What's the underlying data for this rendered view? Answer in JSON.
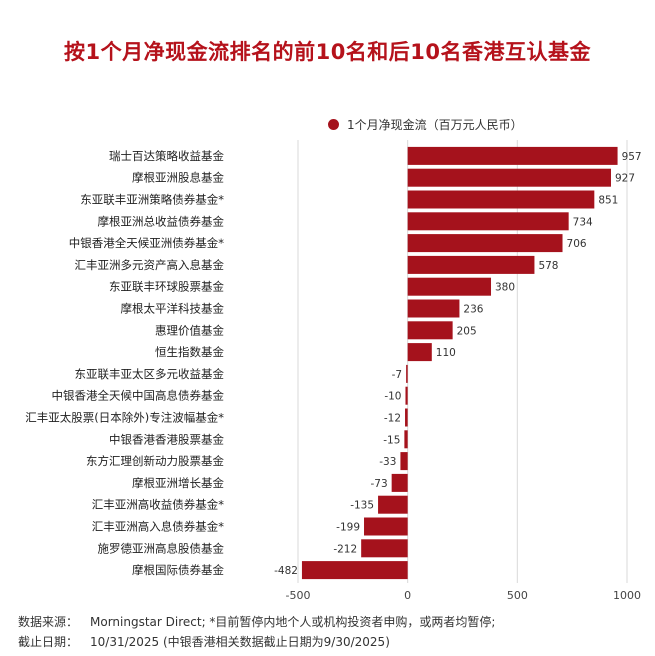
{
  "title": "按1个月净现金流排名的前10名和后10名香港互认基金",
  "legend_label": "1个月净现金流（百万元人民币）",
  "colors": {
    "bar": "#a5121c",
    "title": "#b5121b",
    "grid": "#d9d9d9"
  },
  "footer": {
    "source_label": "数据来源：",
    "source_text": "Morningstar Direct; *目前暂停内地个人或机构投资者申购，或两者均暂停;",
    "date_label": "截止日期：",
    "date_text": "10/31/2025 (中银香港相关数据截止日期为9/30/2025)"
  },
  "chart_data": {
    "type": "bar",
    "orientation": "horizontal",
    "title": "按1个月净现金流排名的前10名和后10名香港互认基金",
    "series": [
      {
        "name": "1个月净现金流（百万元人民币）",
        "values": [
          957,
          927,
          851,
          734,
          706,
          578,
          380,
          236,
          205,
          110,
          -7,
          -10,
          -12,
          -15,
          -33,
          -73,
          -135,
          -199,
          -212,
          -482
        ]
      }
    ],
    "categories": [
      "瑞士百达策略收益基金",
      "摩根亚洲股息基金",
      "东亚联丰亚洲策略债券基金*",
      "摩根亚洲总收益债券基金",
      "中银香港全天候亚洲债券基金*",
      "汇丰亚洲多元资产高入息基金",
      "东亚联丰环球股票基金",
      "摩根太平洋科技基金",
      "惠理价值基金",
      "恒生指数基金",
      "东亚联丰亚太区多元收益基金",
      "中银香港全天候中国高息债券基金",
      "汇丰亚太股票(日本除外)专注波幅基金*",
      "中银香港香港股票基金",
      "东方汇理创新动力股票基金",
      "摩根亚洲增长基金",
      "汇丰亚洲高收益债券基金*",
      "汇丰亚洲高入息债券基金*",
      "施罗德亚洲高息股债基金",
      "摩根国际债券基金"
    ],
    "values": [
      957,
      927,
      851,
      734,
      706,
      578,
      380,
      236,
      205,
      110,
      -7,
      -10,
      -12,
      -15,
      -33,
      -73,
      -135,
      -199,
      -212,
      -482
    ],
    "value_labels": [
      "957",
      "927",
      "851",
      "734",
      "706",
      "578",
      "380",
      "236",
      "205",
      "110",
      "-7",
      "-10",
      "-12",
      "-15",
      "-33",
      "-73",
      "-135",
      "-199",
      "-212",
      "-482"
    ],
    "xlim": [
      -500,
      1000
    ],
    "xticks": [
      -500,
      0,
      500,
      1000
    ],
    "xtick_labels": [
      "-500",
      "0",
      "500",
      "1000"
    ],
    "grid": true,
    "legend_position": "top"
  }
}
